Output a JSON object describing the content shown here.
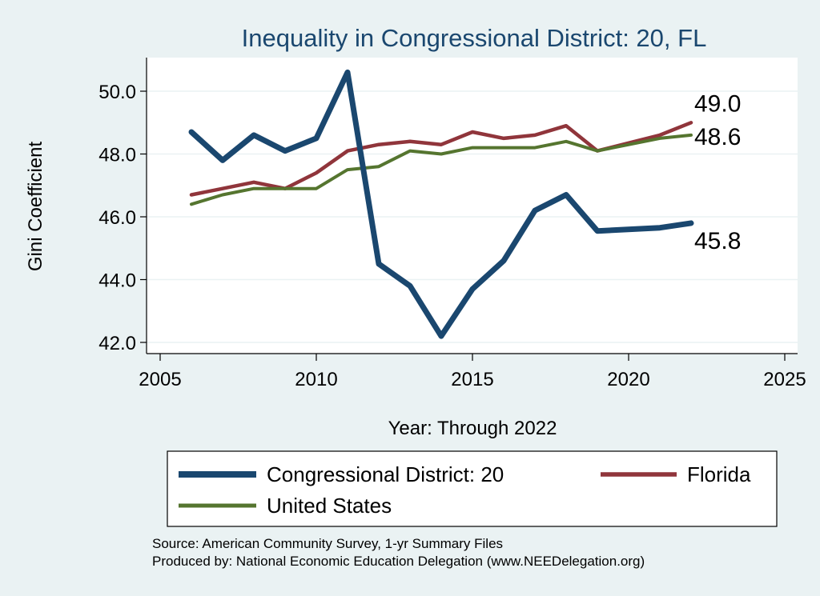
{
  "chart_data": {
    "type": "line",
    "title": "Inequality in Congressional District:  20, FL",
    "xlabel": "Year: Through 2022",
    "ylabel": "Gini Coefficient",
    "xlim": [
      2005,
      2025
    ],
    "ylim": [
      42.0,
      51.0
    ],
    "x_ticks": [
      "2005",
      "2010",
      "2015",
      "2020",
      "2025"
    ],
    "y_ticks": [
      "42.0",
      "44.0",
      "46.0",
      "48.0",
      "50.0"
    ],
    "grid": true,
    "legend_position": "bottom",
    "series": [
      {
        "name": "Congressional District:  20",
        "color": "#1a476f",
        "x": [
          2006,
          2007,
          2008,
          2009,
          2010,
          2011,
          2012,
          2013,
          2014,
          2015,
          2016,
          2017,
          2018,
          2019,
          2021,
          2022
        ],
        "values": [
          48.7,
          47.8,
          48.6,
          48.1,
          48.5,
          50.6,
          44.5,
          43.8,
          42.2,
          43.7,
          44.6,
          46.2,
          46.7,
          45.55,
          45.65,
          45.8
        ],
        "end_label": "45.8"
      },
      {
        "name": "Florida",
        "color": "#90353b",
        "x": [
          2006,
          2007,
          2008,
          2009,
          2010,
          2011,
          2012,
          2013,
          2014,
          2015,
          2016,
          2017,
          2018,
          2019,
          2021,
          2022
        ],
        "values": [
          46.7,
          46.9,
          47.1,
          46.9,
          47.4,
          48.1,
          48.3,
          48.4,
          48.3,
          48.7,
          48.5,
          48.6,
          48.9,
          48.1,
          48.6,
          49.0
        ],
        "end_label": "49.0"
      },
      {
        "name": "United States",
        "color": "#55752f",
        "x": [
          2006,
          2007,
          2008,
          2009,
          2010,
          2011,
          2012,
          2013,
          2014,
          2015,
          2016,
          2017,
          2018,
          2019,
          2021,
          2022
        ],
        "values": [
          46.4,
          46.7,
          46.9,
          46.9,
          46.9,
          47.5,
          47.6,
          48.1,
          48.0,
          48.2,
          48.2,
          48.2,
          48.4,
          48.1,
          48.5,
          48.6
        ],
        "end_label": "48.6"
      }
    ],
    "colors": {
      "title": "#1a476f",
      "background": "#eaf2f3",
      "plot_background": "#ffffff",
      "grid": "#eaf2f3"
    }
  },
  "source": {
    "line1": "Source: American Community Survey, 1-yr Summary Files",
    "line2": "Produced by: National Economic Education Delegation (www.NEEDelegation.org)"
  }
}
